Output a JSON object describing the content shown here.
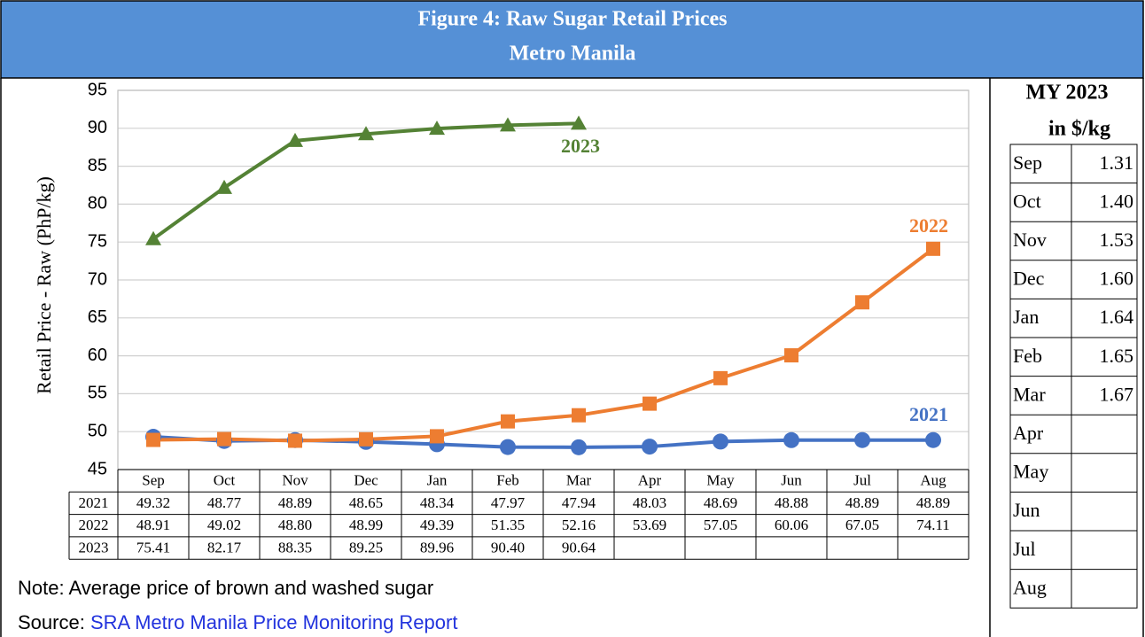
{
  "chart_data": {
    "type": "line",
    "title_lines": [
      "Figure 4: Raw Sugar Retail Prices",
      "Metro Manila"
    ],
    "y_label": "Retail Price - Raw (PhP/kg)",
    "categories": [
      "Sep",
      "Oct",
      "Nov",
      "Dec",
      "Jan",
      "Feb",
      "Mar",
      "Apr",
      "May",
      "Jun",
      "Jul",
      "Aug"
    ],
    "series": [
      {
        "name": "2021",
        "color": "#4472c4",
        "marker": "circle",
        "values": [
          49.32,
          48.77,
          48.89,
          48.65,
          48.34,
          47.97,
          47.94,
          48.03,
          48.69,
          48.88,
          48.89,
          48.89
        ],
        "value_labels": [
          "49.32",
          "48.77",
          "48.89",
          "48.65",
          "48.34",
          "47.97",
          "47.94",
          "48.03",
          "48.69",
          "48.88",
          "48.89",
          "48.89"
        ]
      },
      {
        "name": "2022",
        "color": "#ed7d31",
        "marker": "square",
        "values": [
          48.91,
          49.02,
          48.8,
          48.99,
          49.39,
          51.35,
          52.16,
          53.69,
          57.05,
          60.06,
          67.05,
          74.11
        ],
        "value_labels": [
          "48.91",
          "49.02",
          "48.80",
          "48.99",
          "49.39",
          "51.35",
          "52.16",
          "53.69",
          "57.05",
          "60.06",
          "67.05",
          "74.11"
        ]
      },
      {
        "name": "2023",
        "color": "#548235",
        "marker": "triangle",
        "values": [
          75.41,
          82.17,
          88.35,
          89.25,
          89.96,
          90.4,
          90.64,
          null,
          null,
          null,
          null,
          null
        ],
        "value_labels": [
          "75.41",
          "82.17",
          "88.35",
          "89.25",
          "89.96",
          "90.40",
          "90.64",
          null,
          null,
          null,
          null,
          null
        ]
      }
    ],
    "ylim": [
      45,
      95
    ],
    "yticks": [
      45,
      50,
      55,
      60,
      65,
      70,
      75,
      80,
      85,
      90,
      95
    ],
    "grid": true
  },
  "side_table": {
    "title_lines": [
      "MY 2023",
      "in $/kg"
    ],
    "months": [
      "Sep",
      "Oct",
      "Nov",
      "Dec",
      "Jan",
      "Feb",
      "Mar",
      "Apr",
      "May",
      "Jun",
      "Jul",
      "Aug"
    ],
    "values": [
      "1.31",
      "1.40",
      "1.53",
      "1.60",
      "1.64",
      "1.65",
      "1.67",
      null,
      null,
      null,
      null,
      null
    ]
  },
  "note": "Note: Average price of brown and washed sugar",
  "source_prefix": "Source:",
  "source_link": "SRA Metro Manila Price Monitoring Report"
}
